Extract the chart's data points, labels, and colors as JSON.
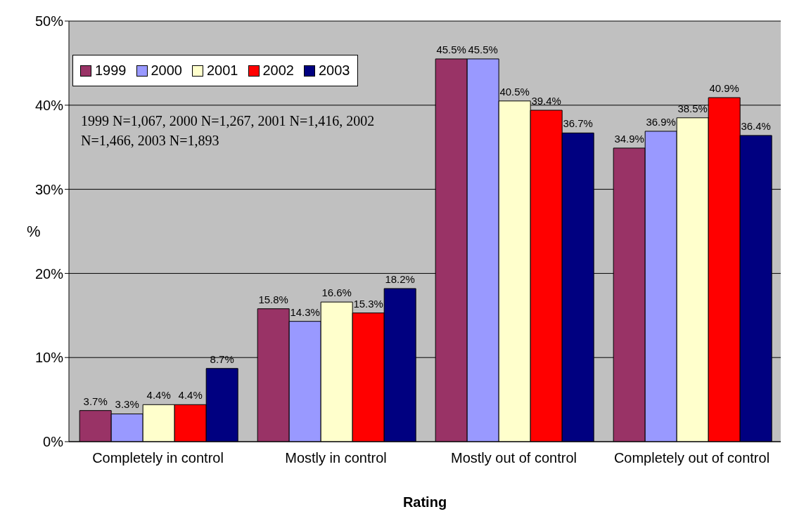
{
  "chart_data": {
    "type": "bar",
    "xlabel": "Rating",
    "ylabel": "%",
    "categories": [
      "Completely in control",
      "Mostly in control",
      "Mostly out of control",
      "Completely out of control"
    ],
    "series": [
      {
        "name": "1999",
        "color": "#993366",
        "values": [
          3.7,
          15.8,
          45.5,
          34.9
        ],
        "value_labels": [
          "3.7%",
          "15.8%",
          "45.5%",
          "34.9%"
        ]
      },
      {
        "name": "2000",
        "color": "#9999ff",
        "values": [
          3.3,
          14.3,
          45.5,
          36.9
        ],
        "value_labels": [
          "3.3%",
          "14.3%",
          "45.5%",
          "36.9%"
        ]
      },
      {
        "name": "2001",
        "color": "#ffffcc",
        "values": [
          4.4,
          16.6,
          40.5,
          38.5
        ],
        "value_labels": [
          "4.4%",
          "16.6%",
          "40.5%",
          "38.5%"
        ]
      },
      {
        "name": "2002",
        "color": "#ff0000",
        "values": [
          4.4,
          15.3,
          39.4,
          40.9
        ],
        "value_labels": [
          "4.4%",
          "15.3%",
          "39.4%",
          "40.9%"
        ]
      },
      {
        "name": "2003",
        "color": "#000080",
        "values": [
          8.7,
          18.2,
          36.7,
          36.4
        ],
        "value_labels": [
          "8.7%",
          "18.2%",
          "36.7%",
          "36.4%"
        ]
      }
    ],
    "ylim": [
      0,
      50
    ],
    "yticks": [
      {
        "value": 0,
        "label": "0%"
      },
      {
        "value": 10,
        "label": "10%"
      },
      {
        "value": 20,
        "label": "20%"
      },
      {
        "value": 30,
        "label": "30%"
      },
      {
        "value": 40,
        "label": "40%"
      },
      {
        "value": 50,
        "label": "50%"
      }
    ],
    "grid": "y",
    "legend": "top left",
    "annotations": [
      "1999 N=1,067, 2000 N=1,267, 2001 N=1,416, 2002 N=1,466, 2003 N=1,893"
    ]
  }
}
